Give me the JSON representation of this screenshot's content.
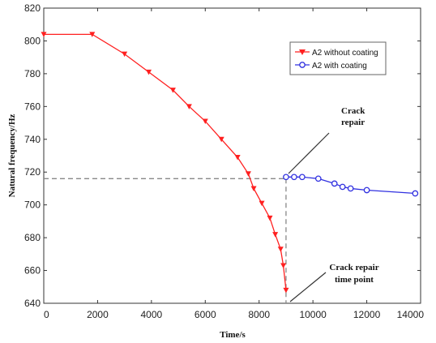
{
  "chart_data": {
    "type": "line",
    "xlabel": "Time/s",
    "ylabel": "Natural frequency/Hz",
    "xlim": [
      0,
      14000
    ],
    "ylim": [
      640,
      820
    ],
    "xticks": [
      "0",
      "2000",
      "4000",
      "6000",
      "8000",
      "10000",
      "12000",
      "14000"
    ],
    "yticks": [
      "640",
      "660",
      "680",
      "700",
      "720",
      "740",
      "760",
      "780",
      "800",
      "820"
    ],
    "grid": false,
    "legend_position": "top-right",
    "series": [
      {
        "name": "A2 without coating",
        "color": "#ff2020",
        "marker": "triangle-down",
        "x": [
          0,
          1800,
          3000,
          3900,
          4800,
          5400,
          6000,
          6600,
          7200,
          7600,
          7800,
          8100,
          8400,
          8600,
          8800,
          8900,
          9000
        ],
        "y": [
          804,
          804,
          792,
          781,
          770,
          760,
          751,
          740,
          729,
          719,
          710,
          701,
          692,
          682,
          673,
          663,
          648
        ]
      },
      {
        "name": "A2 with coating",
        "color": "#3030e0",
        "marker": "circle",
        "x": [
          9000,
          9300,
          9600,
          10200,
          10800,
          11100,
          11400,
          12000,
          13800
        ],
        "y": [
          717,
          717,
          717,
          716,
          713,
          711,
          710,
          709,
          707
        ]
      }
    ],
    "reference_line": {
      "y": 716,
      "x": 9000
    },
    "annotations": [
      {
        "lines": [
          "Crack",
          "repair"
        ]
      },
      {
        "lines": [
          "Crack repair",
          "time point"
        ]
      }
    ]
  }
}
